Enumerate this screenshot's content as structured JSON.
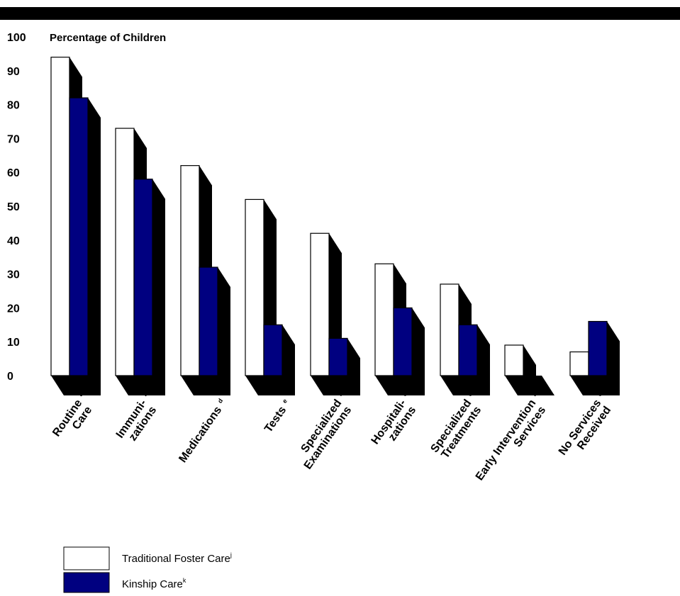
{
  "chart_data": {
    "type": "bar",
    "ylabel": "Percentage of Children",
    "ylim": [
      0,
      100
    ],
    "yticks": [
      "0",
      "10",
      "20",
      "30",
      "40",
      "50",
      "60",
      "70",
      "80",
      "90",
      "100"
    ],
    "categories": [
      {
        "lines": [
          "Routine",
          "Care"
        ],
        "sup": "a"
      },
      {
        "lines": [
          "Immuni-",
          "zations"
        ],
        "sup": "b,c"
      },
      {
        "lines": [
          "Medications"
        ],
        "sup": "d"
      },
      {
        "lines": [
          "Tests"
        ],
        "sup": "e"
      },
      {
        "lines": [
          "Specialized",
          "Examinations"
        ],
        "sup": "f"
      },
      {
        "lines": [
          "Hospitali-",
          "zations"
        ],
        "sup": "c,g"
      },
      {
        "lines": [
          "Specialized",
          "Treatments"
        ],
        "sup": "c,h"
      },
      {
        "lines": [
          "Early Intervention",
          "Services"
        ],
        "sup": "i"
      },
      {
        "lines": [
          "No Services",
          "Received"
        ],
        "sup": "c"
      }
    ],
    "series": [
      {
        "name": "Traditional Foster Care",
        "sup": "j",
        "color": "#ffffff",
        "values": [
          94,
          73,
          62,
          52,
          42,
          33,
          27,
          9,
          7
        ]
      },
      {
        "name": "Kinship Care",
        "sup": "k",
        "color": "#000080",
        "values": [
          82,
          58,
          32,
          15,
          11,
          20,
          15,
          0,
          16
        ]
      }
    ],
    "grid": false,
    "legend_position": "bottom-left",
    "style": "3d-shadow"
  }
}
